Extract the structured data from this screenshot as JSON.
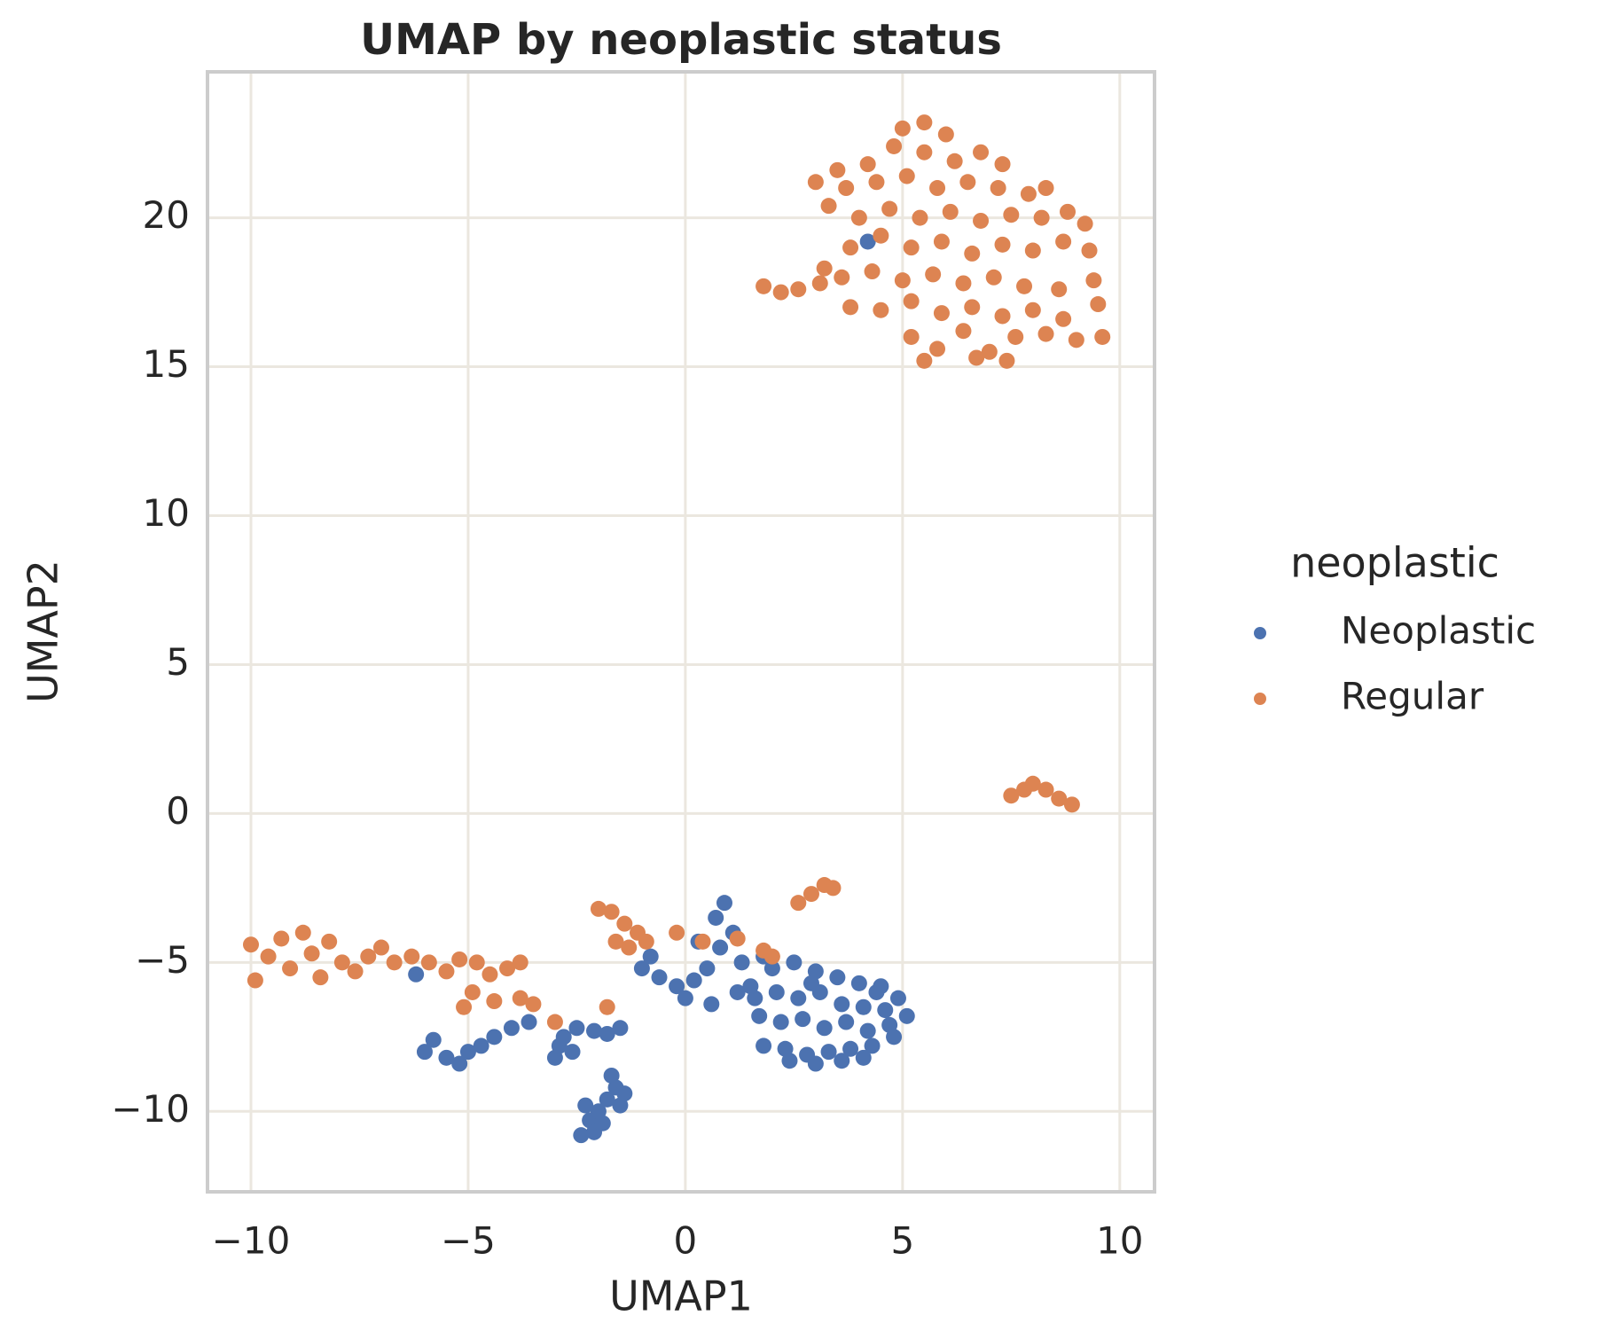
{
  "chart_data": {
    "type": "scatter",
    "title": "UMAP by neoplastic status",
    "xlabel": "UMAP1",
    "ylabel": "UMAP2",
    "legend_title": "neoplastic",
    "legend": "right",
    "grid": true,
    "xlim": [
      -11.0,
      10.8
    ],
    "ylim": [
      -12.7,
      24.9
    ],
    "xticks": [
      {
        "value": -10,
        "label": "−10"
      },
      {
        "value": -5,
        "label": "−5"
      },
      0,
      5,
      10
    ],
    "yticks": [
      {
        "value": -10,
        "label": "−10"
      },
      {
        "value": -5,
        "label": "−5"
      },
      0,
      5,
      10,
      15,
      20
    ],
    "series": [
      {
        "name": "Neoplastic",
        "color": "#4c72b0",
        "x": [
          2.0,
          2.5,
          3.0,
          3.5,
          4.0,
          4.5,
          4.9,
          5.1,
          2.1,
          2.6,
          3.1,
          3.6,
          4.1,
          4.6,
          1.7,
          2.2,
          2.7,
          3.2,
          3.7,
          4.2,
          4.7,
          1.8,
          2.3,
          2.8,
          3.3,
          3.8,
          4.3,
          4.8,
          2.4,
          3.0,
          3.6,
          4.1,
          1.6,
          2.9,
          4.4,
          -1.0,
          -0.6,
          -0.2,
          0.2,
          0.5,
          0.8,
          0.7,
          0.9,
          1.1,
          1.3,
          1.5,
          0.3,
          0.0,
          0.6,
          1.2,
          1.8,
          -0.8,
          -2.4,
          -2.2,
          -2.0,
          -1.8,
          -1.6,
          -1.5,
          -1.9,
          -2.3,
          -1.7,
          -1.4,
          -2.1,
          -3.0,
          -2.8,
          -2.5,
          -2.1,
          -1.8,
          -1.5,
          -2.9,
          -2.6,
          -6.0,
          -5.8,
          -5.5,
          -5.2,
          -5.0,
          -4.7,
          -4.4,
          -4.0,
          -3.6,
          -6.2,
          4.2
        ],
        "y": [
          -5.2,
          -5.0,
          -5.3,
          -5.5,
          -5.7,
          -5.8,
          -6.2,
          -6.8,
          -6.0,
          -6.2,
          -6.0,
          -6.4,
          -6.5,
          -6.6,
          -6.8,
          -7.0,
          -6.9,
          -7.2,
          -7.0,
          -7.3,
          -7.1,
          -7.8,
          -7.9,
          -8.1,
          -8.0,
          -7.9,
          -7.8,
          -7.5,
          -8.3,
          -8.4,
          -8.3,
          -8.2,
          -6.2,
          -5.7,
          -6.0,
          -5.2,
          -5.5,
          -5.8,
          -5.6,
          -5.2,
          -4.5,
          -3.5,
          -3.0,
          -4.0,
          -5.0,
          -5.8,
          -4.3,
          -6.2,
          -6.4,
          -6.0,
          -4.8,
          -4.8,
          -10.8,
          -10.3,
          -10.0,
          -9.6,
          -9.2,
          -9.8,
          -10.4,
          -9.8,
          -8.8,
          -9.4,
          -10.7,
          -8.2,
          -7.5,
          -7.2,
          -7.3,
          -7.4,
          -7.2,
          -7.8,
          -8.0,
          -8.0,
          -7.6,
          -8.2,
          -8.4,
          -8.0,
          -7.8,
          -7.5,
          -7.2,
          -7.0,
          -5.4,
          19.2
        ]
      },
      {
        "name": "Regular",
        "color": "#dd8452",
        "x": [
          5.0,
          5.5,
          6.0,
          3.5,
          4.2,
          4.8,
          5.5,
          6.2,
          6.8,
          7.3,
          3.0,
          3.7,
          4.4,
          5.1,
          5.8,
          6.5,
          7.2,
          7.9,
          8.3,
          3.3,
          4.0,
          4.7,
          5.4,
          6.1,
          6.8,
          7.5,
          8.2,
          8.8,
          9.2,
          3.8,
          4.5,
          5.2,
          5.9,
          6.6,
          7.3,
          8.0,
          8.7,
          9.3,
          3.6,
          4.3,
          5.0,
          5.7,
          6.4,
          7.1,
          7.8,
          8.6,
          9.4,
          3.8,
          4.5,
          5.2,
          5.9,
          6.6,
          7.3,
          8.0,
          8.7,
          9.5,
          5.2,
          5.8,
          6.4,
          7.0,
          7.6,
          8.3,
          9.0,
          9.6,
          5.5,
          6.7,
          7.4,
          1.8,
          2.2,
          2.6,
          3.1,
          3.2,
          7.5,
          7.8,
          8.0,
          8.3,
          8.6,
          8.9,
          -10.0,
          -9.9,
          -9.6,
          -9.3,
          -9.1,
          -8.8,
          -8.6,
          -8.4,
          -8.2,
          -7.9,
          -7.6,
          -7.3,
          -7.0,
          -6.7,
          -6.3,
          -5.9,
          -5.5,
          -5.2,
          -4.8,
          -4.5,
          -4.1,
          -3.8,
          -4.9,
          -4.4,
          -3.8,
          -3.5,
          -5.1,
          -2.0,
          -1.7,
          -1.4,
          -1.1,
          -0.9,
          -1.6,
          -1.3,
          2.6,
          2.9,
          3.2,
          3.4,
          -0.2,
          0.4,
          1.2,
          1.8,
          2.0,
          -1.8,
          -3.0
        ],
        "y": [
          23.0,
          23.2,
          22.8,
          21.6,
          21.8,
          22.4,
          22.2,
          21.9,
          22.2,
          21.8,
          21.2,
          21.0,
          21.2,
          21.4,
          21.0,
          21.2,
          21.0,
          20.8,
          21.0,
          20.4,
          20.0,
          20.3,
          20.0,
          20.2,
          19.9,
          20.1,
          20.0,
          20.2,
          19.8,
          19.0,
          19.4,
          19.0,
          19.2,
          18.8,
          19.1,
          18.9,
          19.2,
          18.9,
          18.0,
          18.2,
          17.9,
          18.1,
          17.8,
          18.0,
          17.7,
          17.6,
          17.9,
          17.0,
          16.9,
          17.2,
          16.8,
          17.0,
          16.7,
          16.9,
          16.6,
          17.1,
          16.0,
          15.6,
          16.2,
          15.5,
          16.0,
          16.1,
          15.9,
          16.0,
          15.2,
          15.3,
          15.2,
          17.7,
          17.5,
          17.6,
          17.8,
          18.3,
          0.6,
          0.8,
          1.0,
          0.8,
          0.5,
          0.3,
          -4.4,
          -5.6,
          -4.8,
          -4.2,
          -5.2,
          -4.0,
          -4.7,
          -5.5,
          -4.3,
          -5.0,
          -5.3,
          -4.8,
          -4.5,
          -5.0,
          -4.8,
          -5.0,
          -5.3,
          -4.9,
          -5.0,
          -5.4,
          -5.2,
          -5.0,
          -6.0,
          -6.3,
          -6.2,
          -6.4,
          -6.5,
          -3.2,
          -3.3,
          -3.7,
          -4.0,
          -4.3,
          -4.3,
          -4.5,
          -3.0,
          -2.7,
          -2.4,
          -2.5,
          -4.0,
          -4.3,
          -4.2,
          -4.6,
          -4.8,
          -6.5,
          -7.0
        ]
      }
    ]
  }
}
